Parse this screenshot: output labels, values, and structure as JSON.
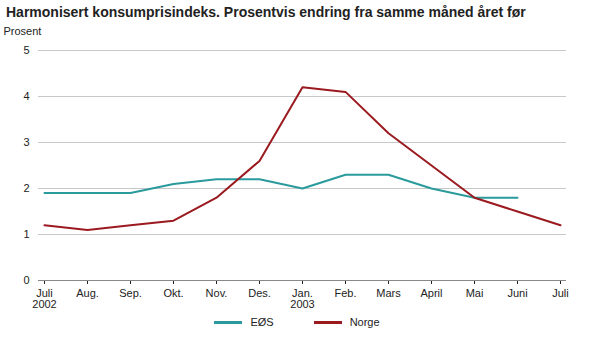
{
  "chart_data": {
    "type": "line",
    "title": "Harmonisert konsumprisindeks. Prosentvis endring fra samme måned året før",
    "y_label": "Prosent",
    "categories": [
      "Juli\n2002",
      "Aug.",
      "Sep.",
      "Okt.",
      "Nov.",
      "Des.",
      "Jan.\n2003",
      "Feb.",
      "Mars",
      "April",
      "Mai",
      "Juni",
      "Juli"
    ],
    "series": [
      {
        "name": "EØS",
        "color": "#2a9a9c",
        "values": [
          1.9,
          1.9,
          1.9,
          2.1,
          2.2,
          2.2,
          2.0,
          2.3,
          2.3,
          2.0,
          1.8,
          1.8,
          null
        ]
      },
      {
        "name": "Norge",
        "color": "#9a1a1f",
        "values": [
          1.2,
          1.1,
          1.2,
          1.3,
          1.8,
          2.6,
          4.2,
          4.1,
          3.2,
          2.5,
          1.8,
          1.5,
          1.2
        ]
      }
    ],
    "ylim": [
      0,
      5
    ],
    "yticks": [
      0,
      1,
      2,
      3,
      4,
      5
    ],
    "grid": true,
    "legend": "bottom"
  }
}
